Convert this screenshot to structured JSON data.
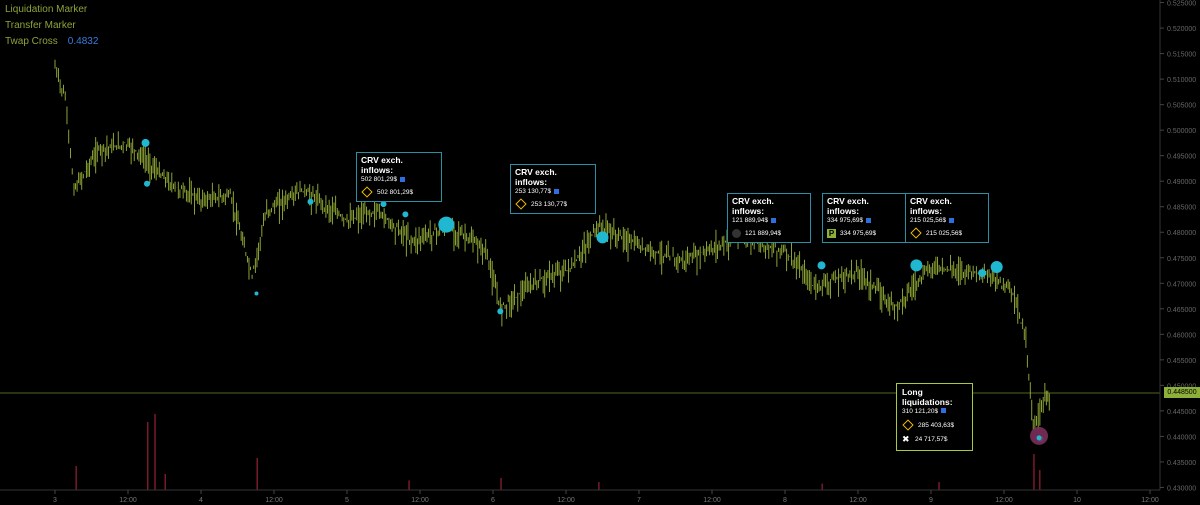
{
  "legend": {
    "items": [
      {
        "label": "Liquidation Marker",
        "value": ""
      },
      {
        "label": "Transfer Marker",
        "value": ""
      },
      {
        "label": "Twap Cross",
        "value": "0.4832"
      }
    ]
  },
  "last_price": "0.448500",
  "flow_boxes": [
    {
      "title": "CRV exch. inflows:",
      "amount": "502 801,29$",
      "entry_icon": "binance-icon",
      "entry_value": "502 801,29$"
    },
    {
      "title": "CRV exch. inflows:",
      "amount": "253 130,77$",
      "entry_icon": "binance-icon",
      "entry_value": "253 130,77$"
    },
    {
      "title": "CRV exch. inflows:",
      "amount": "121 889,94$",
      "entry_icon": "exchange-dark-icon",
      "entry_value": "121 889,94$"
    },
    {
      "title": "CRV exch. inflows:",
      "amount": "334 975,69$",
      "entry_icon": "p-exchange-icon",
      "entry_value": "334 975,69$"
    },
    {
      "title": "CRV exch. inflows:",
      "amount": "215 025,56$",
      "entry_icon": "binance-icon",
      "entry_value": "215 025,56$"
    }
  ],
  "liquidation_box": {
    "title": "Long liquidations:",
    "amount": "310 121,20$",
    "entries": [
      {
        "icon": "binance-icon",
        "value": "285 403,63$"
      },
      {
        "icon": "x-exchange-icon",
        "value": "24 717,57$"
      }
    ]
  },
  "chart_data": {
    "type": "line",
    "title": "",
    "xlabel": "",
    "ylabel": "",
    "x_ticks": [
      "3",
      "12:00",
      "4",
      "12:00",
      "5",
      "12:00",
      "6",
      "12:00",
      "7",
      "12:00",
      "8",
      "12:00",
      "9",
      "12:00",
      "10",
      "12:00"
    ],
    "y_ticks": [
      "0.430000",
      "0.435000",
      "0.440000",
      "0.445000",
      "0.450000",
      "0.455000",
      "0.460000",
      "0.465000",
      "0.470000",
      "0.475000",
      "0.480000",
      "0.485000",
      "0.490000",
      "0.495000",
      "0.500000",
      "0.505000",
      "0.510000",
      "0.515000",
      "0.520000",
      "0.525000"
    ],
    "ylim": [
      0.4295,
      0.5255
    ],
    "xlim": [
      0,
      8
    ],
    "x_unit": "days since Jan 3 start",
    "price_series": [
      {
        "x": 0.0,
        "y": 0.513
      },
      {
        "x": 0.07,
        "y": 0.507
      },
      {
        "x": 0.13,
        "y": 0.489
      },
      {
        "x": 0.3,
        "y": 0.497
      },
      {
        "x": 0.5,
        "y": 0.498
      },
      {
        "x": 0.65,
        "y": 0.494
      },
      {
        "x": 0.8,
        "y": 0.49
      },
      {
        "x": 1.0,
        "y": 0.487
      },
      {
        "x": 1.2,
        "y": 0.488
      },
      {
        "x": 1.35,
        "y": 0.472
      },
      {
        "x": 1.45,
        "y": 0.485
      },
      {
        "x": 1.7,
        "y": 0.489
      },
      {
        "x": 2.0,
        "y": 0.483
      },
      {
        "x": 2.2,
        "y": 0.485
      },
      {
        "x": 2.45,
        "y": 0.479
      },
      {
        "x": 2.7,
        "y": 0.482
      },
      {
        "x": 2.95,
        "y": 0.477
      },
      {
        "x": 3.05,
        "y": 0.466
      },
      {
        "x": 3.3,
        "y": 0.471
      },
      {
        "x": 3.55,
        "y": 0.474
      },
      {
        "x": 3.72,
        "y": 0.482
      },
      {
        "x": 4.0,
        "y": 0.478
      },
      {
        "x": 4.3,
        "y": 0.475
      },
      {
        "x": 4.7,
        "y": 0.48
      },
      {
        "x": 5.0,
        "y": 0.477
      },
      {
        "x": 5.2,
        "y": 0.47
      },
      {
        "x": 5.5,
        "y": 0.473
      },
      {
        "x": 5.75,
        "y": 0.466
      },
      {
        "x": 6.0,
        "y": 0.474
      },
      {
        "x": 6.3,
        "y": 0.473
      },
      {
        "x": 6.55,
        "y": 0.47
      },
      {
        "x": 6.65,
        "y": 0.46
      },
      {
        "x": 6.7,
        "y": 0.442
      },
      {
        "x": 6.78,
        "y": 0.449
      },
      {
        "x": 6.82,
        "y": 0.448
      }
    ],
    "transfer_markers": [
      {
        "x": 0.62,
        "y": 0.4975,
        "size": 4
      },
      {
        "x": 0.63,
        "y": 0.4895,
        "size": 3
      },
      {
        "x": 1.38,
        "y": 0.468,
        "size": 2
      },
      {
        "x": 1.75,
        "y": 0.486,
        "size": 3
      },
      {
        "x": 2.25,
        "y": 0.4855,
        "size": 3
      },
      {
        "x": 2.4,
        "y": 0.4835,
        "size": 3
      },
      {
        "x": 2.68,
        "y": 0.4815,
        "size": 8
      },
      {
        "x": 3.05,
        "y": 0.4645,
        "size": 3
      },
      {
        "x": 3.75,
        "y": 0.479,
        "size": 6
      },
      {
        "x": 5.25,
        "y": 0.4735,
        "size": 4
      },
      {
        "x": 5.9,
        "y": 0.4735,
        "size": 6
      },
      {
        "x": 6.35,
        "y": 0.472,
        "size": 4
      },
      {
        "x": 6.45,
        "y": 0.4732,
        "size": 6
      },
      {
        "x": 6.75,
        "y": 0.4395,
        "size": 3
      }
    ],
    "liquidation_marker": {
      "x": 6.74,
      "y": 0.4401,
      "size": 9
    },
    "volume_bars": [
      {
        "x": 0.14,
        "v": 0.3
      },
      {
        "x": 0.63,
        "v": 0.85
      },
      {
        "x": 0.68,
        "v": 0.95
      },
      {
        "x": 0.75,
        "v": 0.2
      },
      {
        "x": 1.38,
        "v": 0.4
      },
      {
        "x": 2.42,
        "v": 0.12
      },
      {
        "x": 3.05,
        "v": 0.15
      },
      {
        "x": 3.72,
        "v": 0.1
      },
      {
        "x": 5.25,
        "v": 0.08
      },
      {
        "x": 6.05,
        "v": 0.1
      },
      {
        "x": 6.7,
        "v": 0.45
      },
      {
        "x": 6.74,
        "v": 0.25
      }
    ]
  }
}
